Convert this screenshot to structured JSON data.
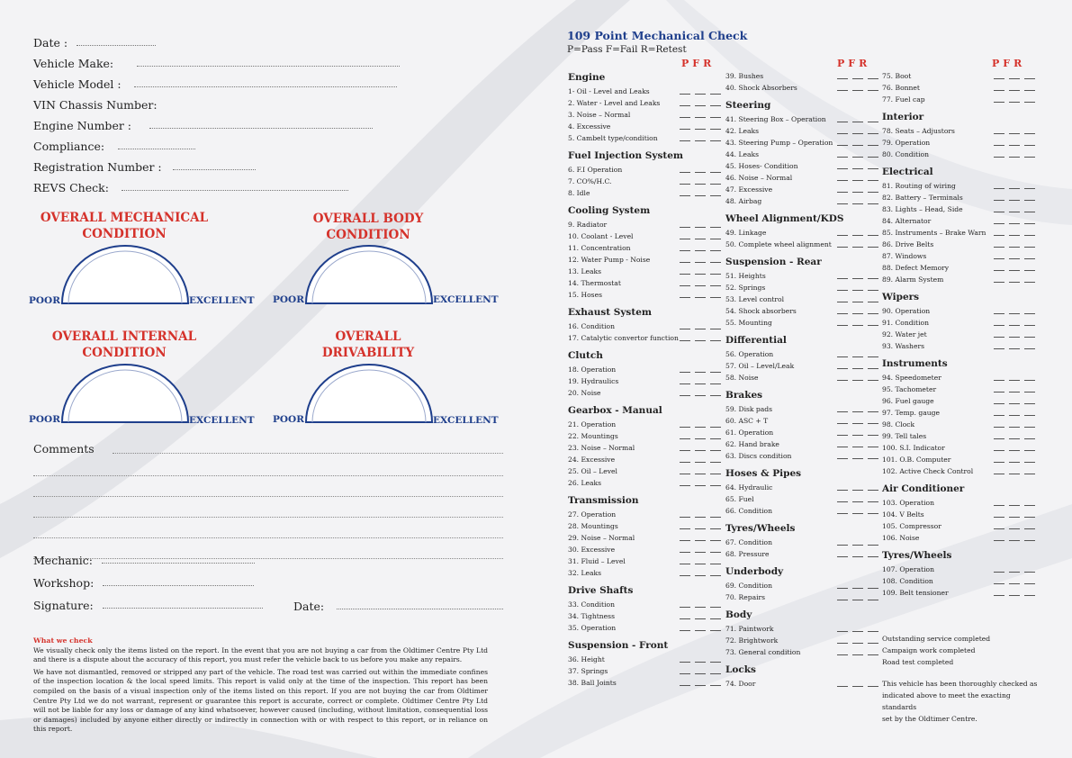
{
  "form_fields": [
    "Date :",
    "Vehicle Make:",
    "Vehicle Model :",
    "VIN Chassis Number:",
    "Engine Number :",
    "Compliance:",
    "Registration Number :",
    "REVS Check:"
  ],
  "gauges": [
    {
      "title1": "OVERALL MECHANICAL",
      "title2": "CONDITION"
    },
    {
      "title1": "OVERALL BODY",
      "title2": "CONDITION"
    },
    {
      "title1": "OVERALL INTERNAL",
      "title2": "CONDITION"
    },
    {
      "title1": "OVERALL",
      "title2": "DRIVABILITY"
    }
  ],
  "gauge_poor": "POOR",
  "gauge_excellent": "EXCELLENT",
  "comments_label": "Comments",
  "mechanic_label": "Mechanic:",
  "workshop_label": "Workshop:",
  "signature_label": "Signature:",
  "date_label": "Date:",
  "what_we_check": {
    "heading": "What we check",
    "p1": "We visually check only the items listed on the report. In the event that you are not buying a car from the Oldtimer Centre Pty Ltd and there is a dispute about the accuracy of this report, you must refer the vehicle back to us before you make any repairs.",
    "p2": "We have not dismantled, removed or stripped any part of the vehicle. The road test was carried out within the immediate confines of the inspection location & the local speed limits. This report is valid only at the time of the inspection. This report has been compiled on the basis of a visual inspection only of the items listed on this report. If you are not buying the car from Oldtimer Centre Pty Ltd we do not warrant, represent or guarantee this report is accurate, correct or complete. Oldtimer Centre Pty Ltd will not be liable for any loss or damage of any kind whatsoever, however caused (including, without limitation, consequential loss or damages) included by anyone either directly or indirectly in connection with or with respect to this report, or in reliance on this report."
  },
  "checklist_title": "109 Point Mechanical Check",
  "checklist_legend": "P=Pass  F=Fail  R=Retest",
  "pfr": "PFR",
  "columns": [
    [
      {
        "title": "Engine",
        "items": [
          "1-  Oil - Level and Leaks",
          "2.  Water - Level and Leaks",
          "3.  Noise – Normal",
          "4.  Excessive",
          "5.  Cambelt type/condition"
        ]
      },
      {
        "title": "Fuel Injection System",
        "items": [
          "6.  F.I Operation",
          "7.  CO%/H.C.",
          "8.  Idle"
        ]
      },
      {
        "title": "Cooling System",
        "items": [
          " 9.  Radiator",
          "10.  Coolant - Level",
          "11.  Concentration",
          "12.  Water Pump - Noise",
          "13.  Leaks",
          "14.  Thermostat",
          "15.  Hoses"
        ]
      },
      {
        "title": "Exhaust System",
        "items": [
          "16.  Condition",
          "17.  Catalytic convertor function"
        ]
      },
      {
        "title": "Clutch",
        "items": [
          "18.  Operation",
          "19.  Hydraulics",
          "20.  Noise"
        ]
      },
      {
        "title": "Gearbox - Manual",
        "items": [
          "21.  Operation",
          "22.  Mountings",
          "23.  Noise – Normal",
          "24.  Excessive",
          "25.  Oil – Level",
          "26.  Leaks"
        ]
      },
      {
        "title": "Transmission",
        "items": [
          "27.  Operation",
          "28.  Mountings",
          "29.  Noise – Normal",
          "30.  Excessive",
          "31.  Fluid – Level",
          "32.  Leaks"
        ]
      },
      {
        "title": "Drive Shafts",
        "items": [
          "33.  Condition",
          "34.  Tightness",
          "35.  Operation"
        ]
      },
      {
        "title": "Suspension - Front",
        "items": [
          "36.  Height",
          "37.  Springs",
          "38.  Ball Joints"
        ]
      }
    ],
    [
      {
        "title": "",
        "items": [
          "39.  Bushes",
          "40.  Shock Absorbers"
        ]
      },
      {
        "title": "Steering",
        "items": [
          "41.  Steering Box – Operation",
          "42.  Leaks",
          "43.  Steering Pump – Operation",
          "44.  Leaks",
          "45.  Hoses- Condition",
          "46.  Noise – Normal",
          "47.  Excessive",
          "48.  Airbag"
        ]
      },
      {
        "title": "Wheel Alignment/KDS",
        "items": [
          "49.  Linkage",
          "50.  Complete wheel alignment"
        ]
      },
      {
        "title": "Suspension - Rear",
        "items": [
          "51.  Heights",
          "52.  Springs",
          "53.  Level control",
          "54.  Shock absorbers",
          "55.  Mounting"
        ]
      },
      {
        "title": "Differential",
        "items": [
          "56.  Operation",
          "57.  Oil – Level/Leak",
          "58.  Noise"
        ]
      },
      {
        "title": "Brakes",
        "items": [
          "59.  Disk pads",
          "60.  ASC + T",
          "61.  Operation",
          "62.  Hand brake",
          "63.  Discs condition"
        ]
      },
      {
        "title": "Hoses & Pipes",
        "items": [
          "64.  Hydraulic",
          "65.  Fuel",
          "66.  Condition"
        ]
      },
      {
        "title": "Tyres/Wheels",
        "items": [
          "67.  Condition",
          "68.  Pressure"
        ]
      },
      {
        "title": "Underbody",
        "items": [
          "69.  Condition",
          "70.  Repairs"
        ]
      },
      {
        "title": "Body",
        "items": [
          "71.  Paintwork",
          "72.  Brightwork",
          "73.  General condition"
        ]
      },
      {
        "title": "Locks",
        "items": [
          "74.  Door"
        ]
      }
    ],
    [
      {
        "title": "",
        "items": [
          "75.  Boot",
          "76.  Bonnet",
          "77.  Fuel cap"
        ]
      },
      {
        "title": "Interior",
        "items": [
          "78.  Seats – Adjustors",
          "79.  Operation",
          "80.  Condition"
        ]
      },
      {
        "title": "Electrical",
        "items": [
          "81.  Routing of wiring",
          "82.  Battery – Terminals",
          "83.  Lights – Head, Side",
          "84.  Alternator",
          "85.  Instruments – Brake Warn",
          "86.  Drive Belts",
          "87.  Windows",
          "88.  Defect Memory",
          "89.  Alarm System"
        ]
      },
      {
        "title": "Wipers",
        "items": [
          "90.  Operation",
          "91.  Condition",
          "92.  Water jet",
          "93.  Washers"
        ]
      },
      {
        "title": "Instruments",
        "items": [
          "94.  Speedometer",
          "95.  Tachometer",
          "96.  Fuel gauge",
          "97.  Temp. gauge",
          "98.  Clock",
          "99.  Tell tales",
          "100.  S.I. Indicator",
          "101.  O.B. Computer",
          "102.  Active Check Control"
        ]
      },
      {
        "title": "Air Conditioner",
        "items": [
          "103.  Operation",
          "104.  V Belts",
          "105.  Compressor",
          "106.  Noise"
        ]
      },
      {
        "title": "Tyres/Wheels",
        "items": [
          "107.  Operation",
          "108.  Condition",
          "109.  Belt tensioner"
        ]
      }
    ]
  ],
  "footer_notes": [
    "Outstanding service completed",
    "Campaign work completed",
    "Road test completed"
  ],
  "footer_statement": [
    "This vehicle has been thoroughly checked as",
    "indicated above to meet the exacting standards",
    "set by the Oldtimer Centre."
  ]
}
